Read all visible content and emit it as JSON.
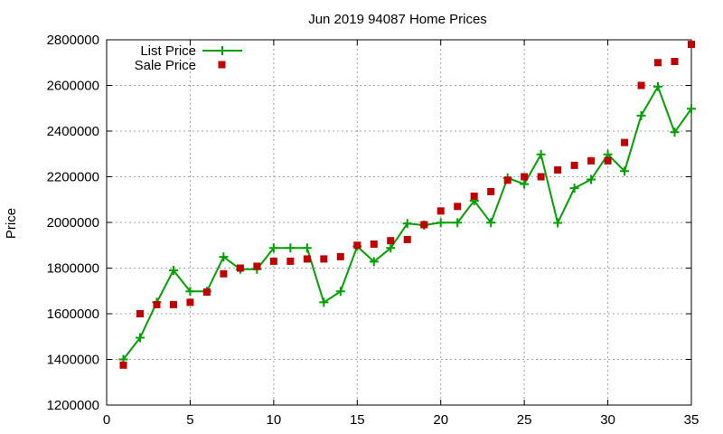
{
  "chart_data": {
    "type": "line",
    "title": "Jun 2019 94087 Home Prices",
    "xlabel": "",
    "ylabel": "Price",
    "xlim": [
      0,
      35
    ],
    "ylim": [
      1200000,
      2800000
    ],
    "x_ticks": [
      "0",
      "5",
      "10",
      "15",
      "20",
      "25",
      "30",
      "35"
    ],
    "y_ticks": [
      "1200000",
      "1400000",
      "1600000",
      "1800000",
      "2000000",
      "2200000",
      "2400000",
      "2600000",
      "2800000"
    ],
    "grid": true,
    "legend_position": "top-left",
    "series": [
      {
        "name": "List Price",
        "style": "line-with-plus-markers",
        "color": "#00a000",
        "x": [
          1,
          2,
          3,
          4,
          5,
          6,
          7,
          8,
          9,
          10,
          11,
          12,
          13,
          14,
          15,
          16,
          17,
          18,
          19,
          20,
          21,
          22,
          23,
          24,
          25,
          26,
          27,
          28,
          29,
          30,
          31,
          32,
          33,
          34,
          35
        ],
        "values": [
          1400000,
          1495000,
          1650000,
          1790000,
          1698000,
          1698000,
          1849000,
          1795000,
          1795000,
          1888000,
          1888000,
          1888000,
          1650000,
          1698000,
          1895000,
          1828000,
          1888000,
          1995000,
          1988000,
          1999000,
          1999000,
          2095000,
          1999000,
          2195000,
          2168000,
          2298000,
          1998000,
          2150000,
          2188000,
          2298000,
          2225000,
          2468000,
          2595000,
          2395000,
          2498000
        ]
      },
      {
        "name": "Sale Price",
        "style": "square-markers",
        "color": "#c00000",
        "x": [
          1,
          2,
          3,
          4,
          5,
          6,
          7,
          8,
          9,
          10,
          11,
          12,
          13,
          14,
          15,
          16,
          17,
          18,
          19,
          20,
          21,
          22,
          23,
          24,
          25,
          26,
          27,
          28,
          29,
          30,
          31,
          32,
          33,
          34,
          35
        ],
        "values": [
          1375000,
          1600000,
          1640000,
          1640000,
          1650000,
          1695000,
          1775000,
          1800000,
          1808000,
          1830000,
          1830000,
          1840000,
          1840000,
          1850000,
          1900000,
          1905000,
          1920000,
          1925000,
          1990000,
          2050000,
          2070000,
          2115000,
          2135000,
          2185000,
          2200000,
          2200000,
          2230000,
          2250000,
          2270000,
          2270000,
          2350000,
          2600000,
          2700000,
          2705000,
          2780000
        ]
      }
    ]
  }
}
